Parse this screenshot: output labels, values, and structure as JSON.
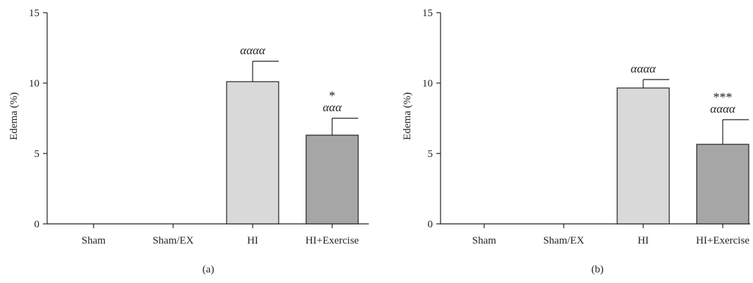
{
  "colors": {
    "axis": "#231f20",
    "bar_hi": "#d9d9d9",
    "bar_hi_exercise": "#a6a6a6"
  },
  "chart_data": [
    {
      "type": "bar",
      "panel_label": "(a)",
      "ylabel": "Edema (%)",
      "xlabel": "",
      "ylim": [
        0,
        15
      ],
      "yticks": [
        0,
        5,
        10,
        15
      ],
      "categories": [
        "Sham",
        "Sham/EX",
        "HI",
        "HI+Exercise"
      ],
      "values": [
        0,
        0,
        10.1,
        6.3
      ],
      "errors": [
        0,
        0,
        1.45,
        1.2
      ],
      "bar_colors": [
        "",
        "",
        "#d9d9d9",
        "#a6a6a6"
      ],
      "annotations": [
        {
          "category": "HI",
          "lines": [
            "αααα"
          ]
        },
        {
          "category": "HI+Exercise",
          "lines": [
            "*",
            "ααα"
          ]
        }
      ]
    },
    {
      "type": "bar",
      "panel_label": "(b)",
      "ylabel": "Edema (%)",
      "xlabel": "",
      "ylim": [
        0,
        15
      ],
      "yticks": [
        0,
        5,
        10,
        15
      ],
      "categories": [
        "Sham",
        "Sham/EX",
        "HI",
        "HI+Exercise"
      ],
      "values": [
        0,
        0,
        9.65,
        5.65
      ],
      "errors": [
        0,
        0,
        0.6,
        1.75
      ],
      "bar_colors": [
        "",
        "",
        "#d9d9d9",
        "#a6a6a6"
      ],
      "annotations": [
        {
          "category": "HI",
          "lines": [
            "αααα"
          ]
        },
        {
          "category": "HI+Exercise",
          "lines": [
            "***",
            "αααα"
          ]
        }
      ]
    }
  ]
}
